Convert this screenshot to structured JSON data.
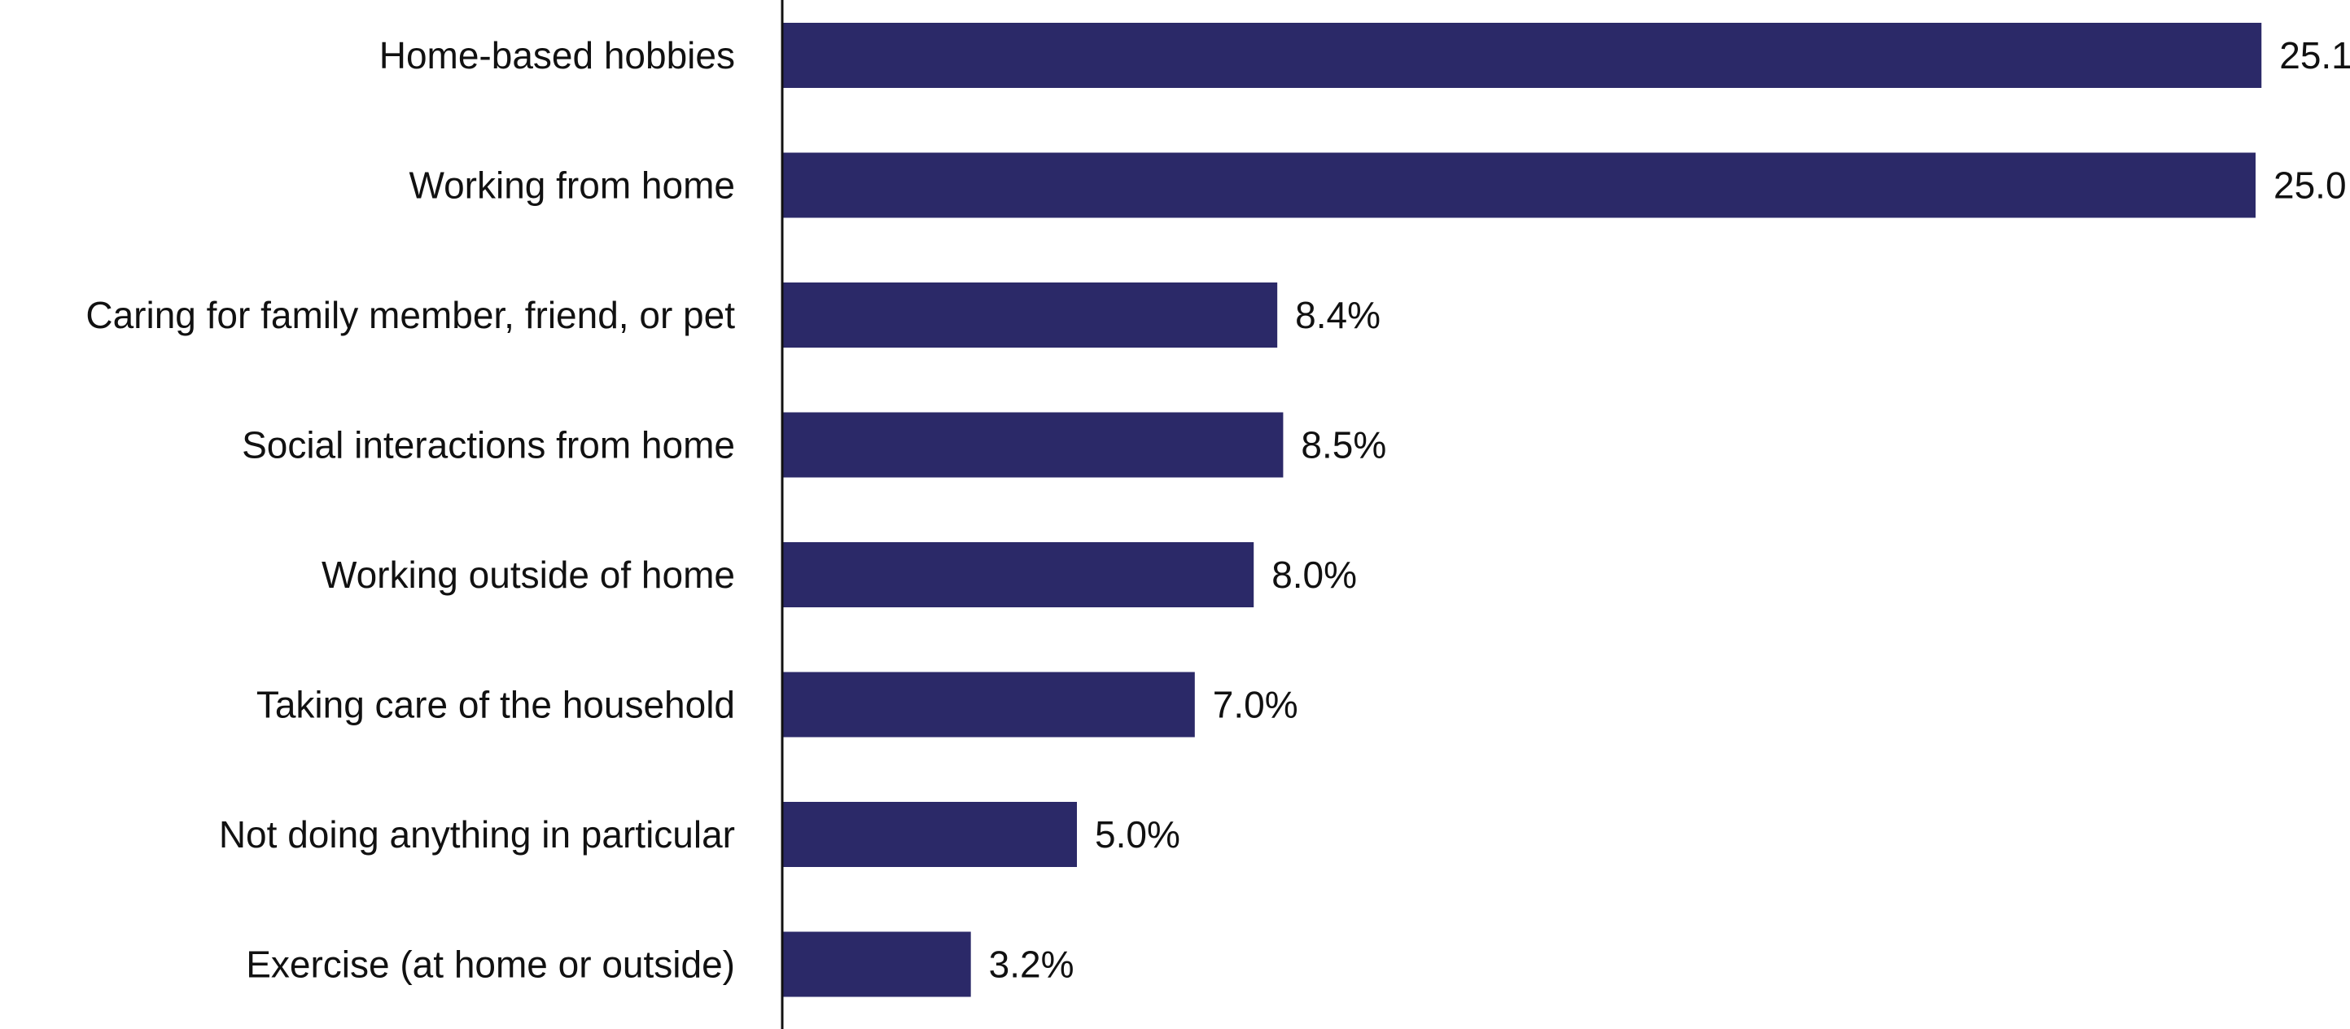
{
  "chart_data": {
    "type": "bar",
    "orientation": "horizontal",
    "categories": [
      "Home-based hobbies",
      "Working from home",
      "Caring for family member, friend, or pet",
      "Social interactions from home",
      "Working outside of home",
      "Taking care of the household",
      "Not doing anything in particular",
      "Exercise (at home or outside)"
    ],
    "values": [
      25.1,
      25.0,
      8.4,
      8.5,
      8.0,
      7.0,
      5.0,
      3.2
    ],
    "value_labels": [
      "25.1",
      "25.0",
      "8.4%",
      "8.5%",
      "8.0%",
      "7.0%",
      "5.0%",
      "3.2%"
    ],
    "bar_color": "#2b2968",
    "title": "",
    "xlabel": "",
    "ylabel": "",
    "grid": false,
    "legend": "none"
  }
}
